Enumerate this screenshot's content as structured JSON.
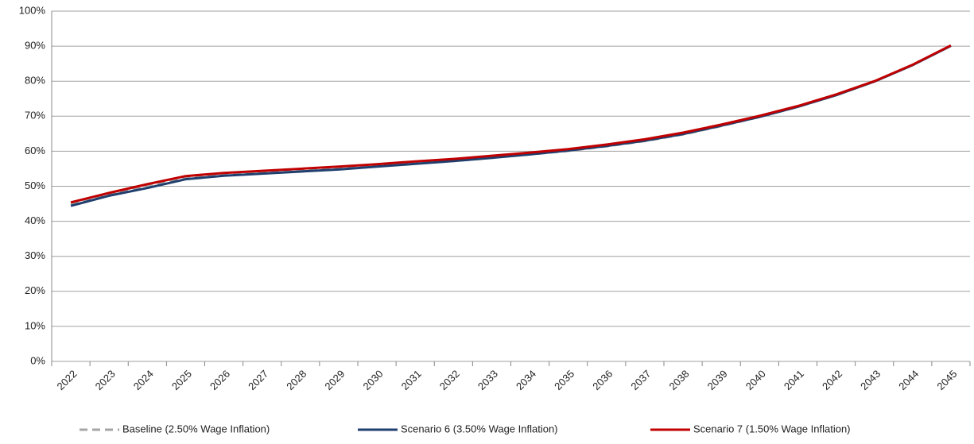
{
  "chart_data": {
    "type": "line",
    "categories": [
      "2022",
      "2023",
      "2024",
      "2025",
      "2026",
      "2027",
      "2028",
      "2029",
      "2030",
      "2031",
      "2032",
      "2033",
      "2034",
      "2035",
      "2036",
      "2037",
      "2038",
      "2039",
      "2040",
      "2041",
      "2042",
      "2043",
      "2044",
      "2045"
    ],
    "series": [
      {
        "name": "Baseline (2.50% Wage Inflation)",
        "color": "#a6a6a6",
        "dashed": true,
        "values": [
          44.8,
          47.6,
          49.9,
          52.3,
          53.3,
          53.8,
          54.4,
          55.0,
          55.7,
          56.5,
          57.2,
          58.1,
          59.1,
          60.1,
          61.4,
          62.9,
          64.8,
          67.2,
          69.8,
          72.7,
          76.0,
          79.9,
          84.6,
          90.1
        ]
      },
      {
        "name": "Scenario 6 (3.50% Wage Inflation)",
        "color": "#1f3f6e",
        "values": [
          44.4,
          47.3,
          49.5,
          52.0,
          53.0,
          53.6,
          54.2,
          54.8,
          55.6,
          56.4,
          57.2,
          58.1,
          59.1,
          60.2,
          61.5,
          63.0,
          64.9,
          67.3,
          69.8,
          72.7,
          76.0,
          79.9,
          84.6,
          90.1
        ]
      },
      {
        "name": "Scenario 7 (1.50% Wage Inflation)",
        "color": "#c00000",
        "values": [
          45.4,
          48.1,
          50.6,
          52.9,
          53.8,
          54.4,
          55.0,
          55.6,
          56.3,
          57.1,
          57.8,
          58.7,
          59.6,
          60.6,
          61.9,
          63.4,
          65.3,
          67.6,
          70.1,
          72.9,
          76.2,
          80.0,
          84.7,
          90.2
        ]
      }
    ],
    "ylim": [
      0,
      100
    ],
    "yticks": [
      {
        "value": 0,
        "label": "0%"
      },
      {
        "value": 10,
        "label": "10%"
      },
      {
        "value": 20,
        "label": "20%"
      },
      {
        "value": 30,
        "label": "30%"
      },
      {
        "value": 40,
        "label": "40%"
      },
      {
        "value": 50,
        "label": "50%"
      },
      {
        "value": 60,
        "label": "60%"
      },
      {
        "value": 70,
        "label": "70%"
      },
      {
        "value": 80,
        "label": "80%"
      },
      {
        "value": 90,
        "label": "90%"
      },
      {
        "value": 100,
        "label": "100%"
      }
    ],
    "grid": true,
    "legend": "bottom"
  }
}
